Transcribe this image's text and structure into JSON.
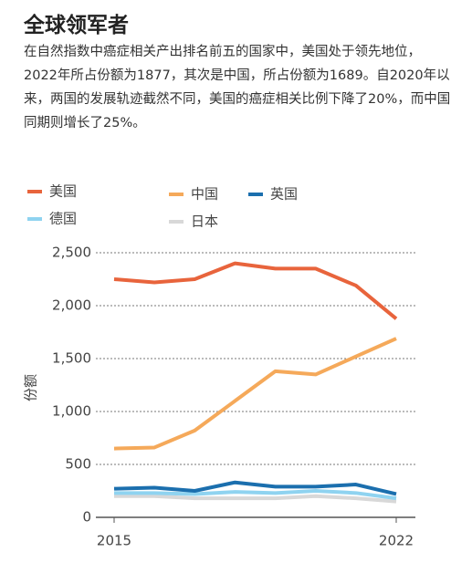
{
  "chart_data": {
    "type": "line",
    "title": "全球领军者",
    "subtitle": "在自然指数中癌症相关产出排名前五的国家中，美国处于领先地位，2022年所占份额为1877，其次是中国，所占份额为1689。自2020年以来，两国的发展轨迹截然不同，美国的癌症相关比例下降了20%，而中国同期则增长了25%。",
    "y_label": "份额",
    "x": [
      2015,
      2016,
      2017,
      2018,
      2019,
      2020,
      2021,
      2022
    ],
    "xlim": [
      2015,
      2022
    ],
    "xticks": [
      2015,
      2022
    ],
    "ylim": [
      0,
      2500
    ],
    "yticks": [
      0,
      500,
      {
        "value": 1000,
        "label": "1,000"
      },
      {
        "value": 1500,
        "label": "1,500"
      },
      {
        "value": 2000,
        "label": "2,000"
      },
      {
        "value": 2500,
        "label": "2,500"
      }
    ],
    "grid": true,
    "series": [
      {
        "name": "美国",
        "color": "#e8643c",
        "values": [
          2250,
          2220,
          2250,
          2400,
          2350,
          2350,
          2190,
          1877
        ]
      },
      {
        "name": "中国",
        "color": "#f5a95a",
        "values": [
          650,
          660,
          820,
          1100,
          1380,
          1350,
          1520,
          1689
        ]
      },
      {
        "name": "英国",
        "color": "#1b6fae",
        "values": [
          270,
          280,
          250,
          330,
          290,
          290,
          310,
          220
        ]
      },
      {
        "name": "德国",
        "color": "#8fd3f0",
        "values": [
          230,
          230,
          220,
          240,
          230,
          250,
          230,
          180
        ]
      },
      {
        "name": "日本",
        "color": "#d8d8d8",
        "values": [
          200,
          200,
          180,
          180,
          180,
          200,
          180,
          150
        ]
      }
    ]
  }
}
